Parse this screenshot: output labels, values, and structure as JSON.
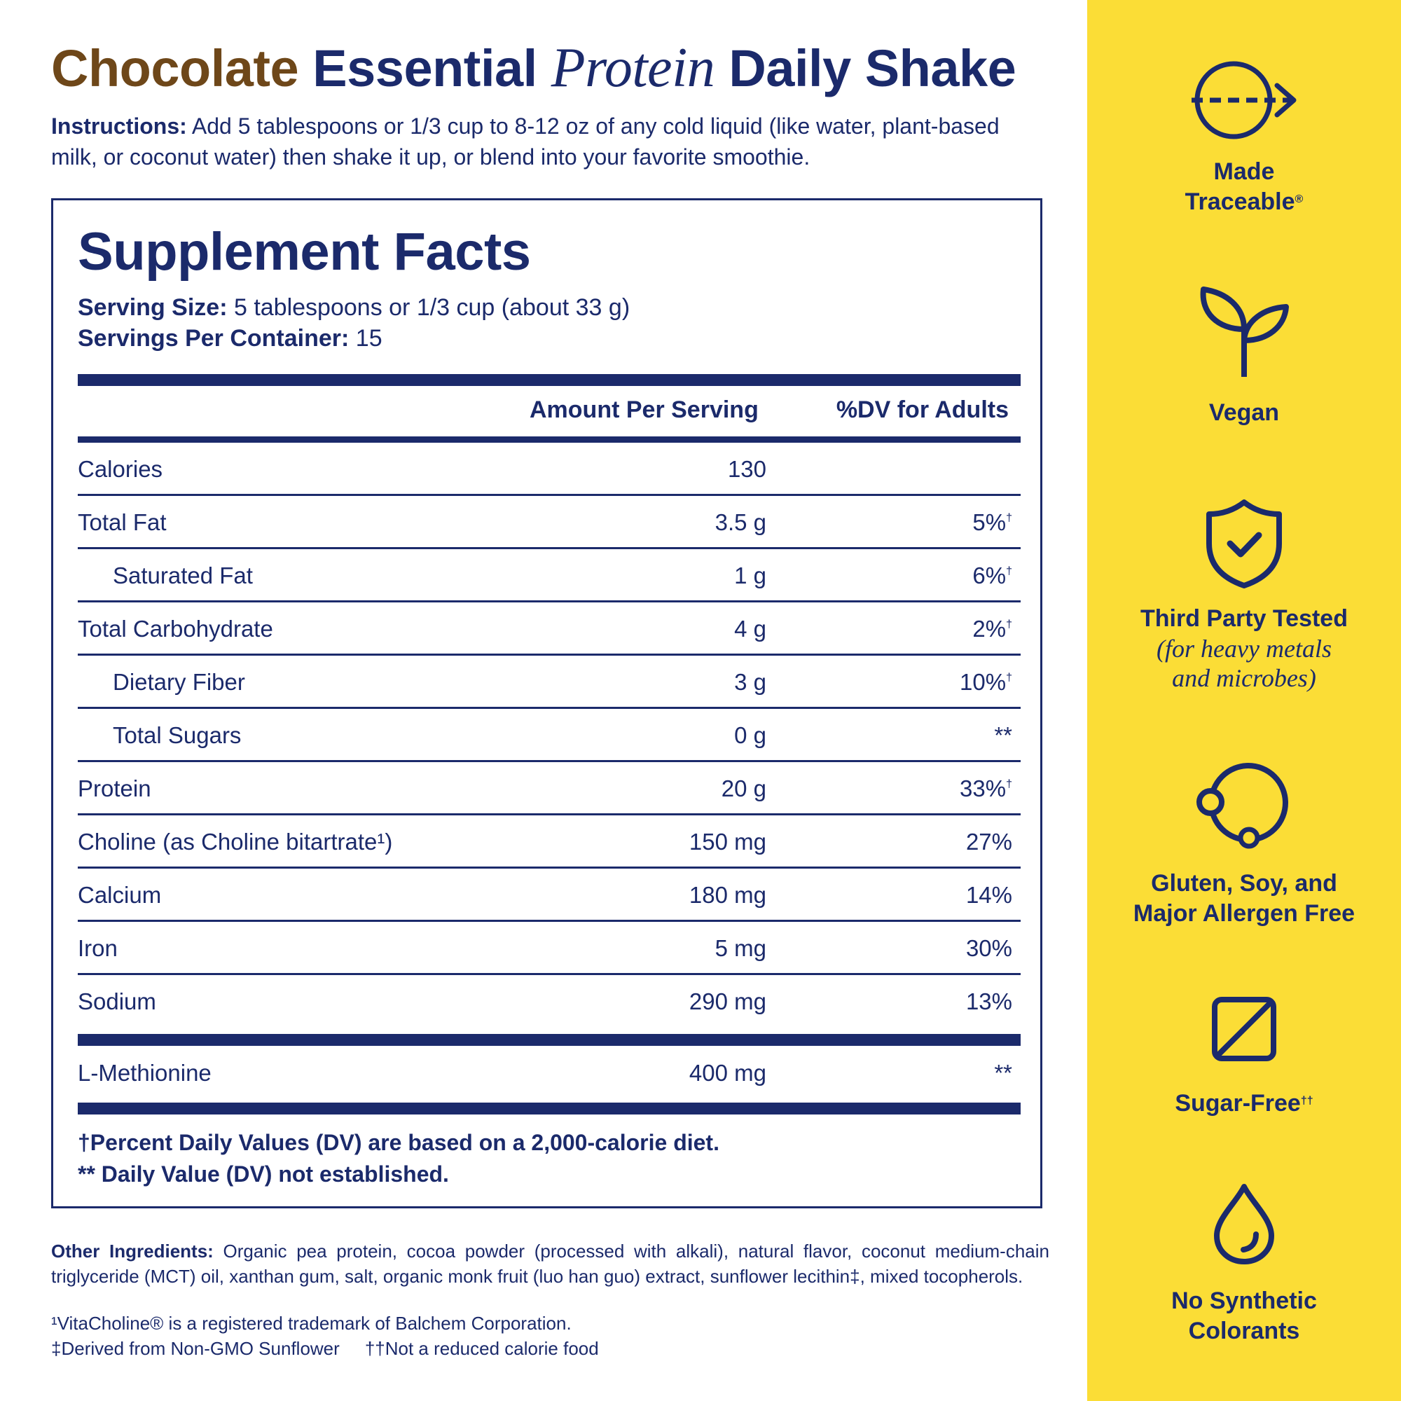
{
  "title": {
    "part1": "Chocolate",
    "part2": "Essential",
    "part3": "Protein",
    "part4": "Daily Shake"
  },
  "instructions": {
    "label": "Instructions:",
    "text": "Add 5 tablespoons or 1/3 cup to 8-12 oz of any cold liquid (like water, plant-based milk, or coconut water) then shake it up, or blend into your favorite smoothie."
  },
  "facts": {
    "heading": "Supplement Facts",
    "serving_size_label": "Serving Size:",
    "serving_size_value": "5 tablespoons or 1/3 cup (about 33 g)",
    "servings_label": "Servings Per Container:",
    "servings_value": "15",
    "col_amount": "Amount Per Serving",
    "col_dv": "%DV for Adults",
    "rows": [
      {
        "name": "Calories",
        "amount": "130",
        "dv": "",
        "mark": ""
      },
      {
        "name": "Total Fat",
        "amount": "3.5 g",
        "dv": "5%",
        "mark": "†"
      },
      {
        "name": "Saturated Fat",
        "amount": "1 g",
        "dv": "6%",
        "mark": "†"
      },
      {
        "name": "Total Carbohydrate",
        "amount": "4 g",
        "dv": "2%",
        "mark": "†"
      },
      {
        "name": "Dietary Fiber",
        "amount": "3 g",
        "dv": "10%",
        "mark": "†"
      },
      {
        "name": "Total Sugars",
        "amount": "0 g",
        "dv": "**",
        "mark": ""
      },
      {
        "name": "Protein",
        "amount": "20 g",
        "dv": "33%",
        "mark": "†"
      },
      {
        "name": "Choline (as Choline bitartrate¹)",
        "amount": "150 mg",
        "dv": "27%",
        "mark": ""
      },
      {
        "name": "Calcium",
        "amount": "180 mg",
        "dv": "14%",
        "mark": ""
      },
      {
        "name": "Iron",
        "amount": "5 mg",
        "dv": "30%",
        "mark": ""
      },
      {
        "name": "Sodium",
        "amount": "290 mg",
        "dv": "13%",
        "mark": ""
      },
      {
        "name": "L-Methionine",
        "amount": "400 mg",
        "dv": "**",
        "mark": ""
      }
    ],
    "note1": "†Percent Daily Values (DV) are based on a 2,000-calorie diet.",
    "note2": "** Daily Value (DV) not established."
  },
  "other_ingredients": {
    "label": "Other Ingredients:",
    "text": "Organic pea protein, cocoa powder (processed with alkali), natural flavor, coconut medium-chain triglyceride (MCT) oil, xanthan gum, salt, organic monk fruit (luo han guo) extract, sunflower lecithin‡, mixed tocopherols."
  },
  "footnotes": {
    "vitacholine": "¹VitaCholine® is a registered trademark of Balchem Corporation.",
    "nongmo": "‡Derived from Non-GMO Sunflower",
    "calorie": "††Not a reduced calorie food"
  },
  "badges": [
    {
      "icon": "traceable-arrow-icon",
      "line1": "Made",
      "line2": "Traceable",
      "mark": "®"
    },
    {
      "icon": "sprout-icon",
      "line1": "Vegan"
    },
    {
      "icon": "shield-check-icon",
      "line1": "Third Party Tested",
      "sub1": "(for heavy metals",
      "sub2": "and microbes)"
    },
    {
      "icon": "allergen-circle-icon",
      "line1": "Gluten, Soy, and",
      "line2": "Major Allergen Free"
    },
    {
      "icon": "no-sugar-square-icon",
      "line1": "Sugar-Free",
      "mark": "††"
    },
    {
      "icon": "droplet-icon",
      "line1": "No Synthetic",
      "line2": "Colorants"
    }
  ],
  "colors": {
    "navy": "#1b2a6b",
    "chocolate": "#6e4719",
    "yellow": "#fbdd36"
  }
}
